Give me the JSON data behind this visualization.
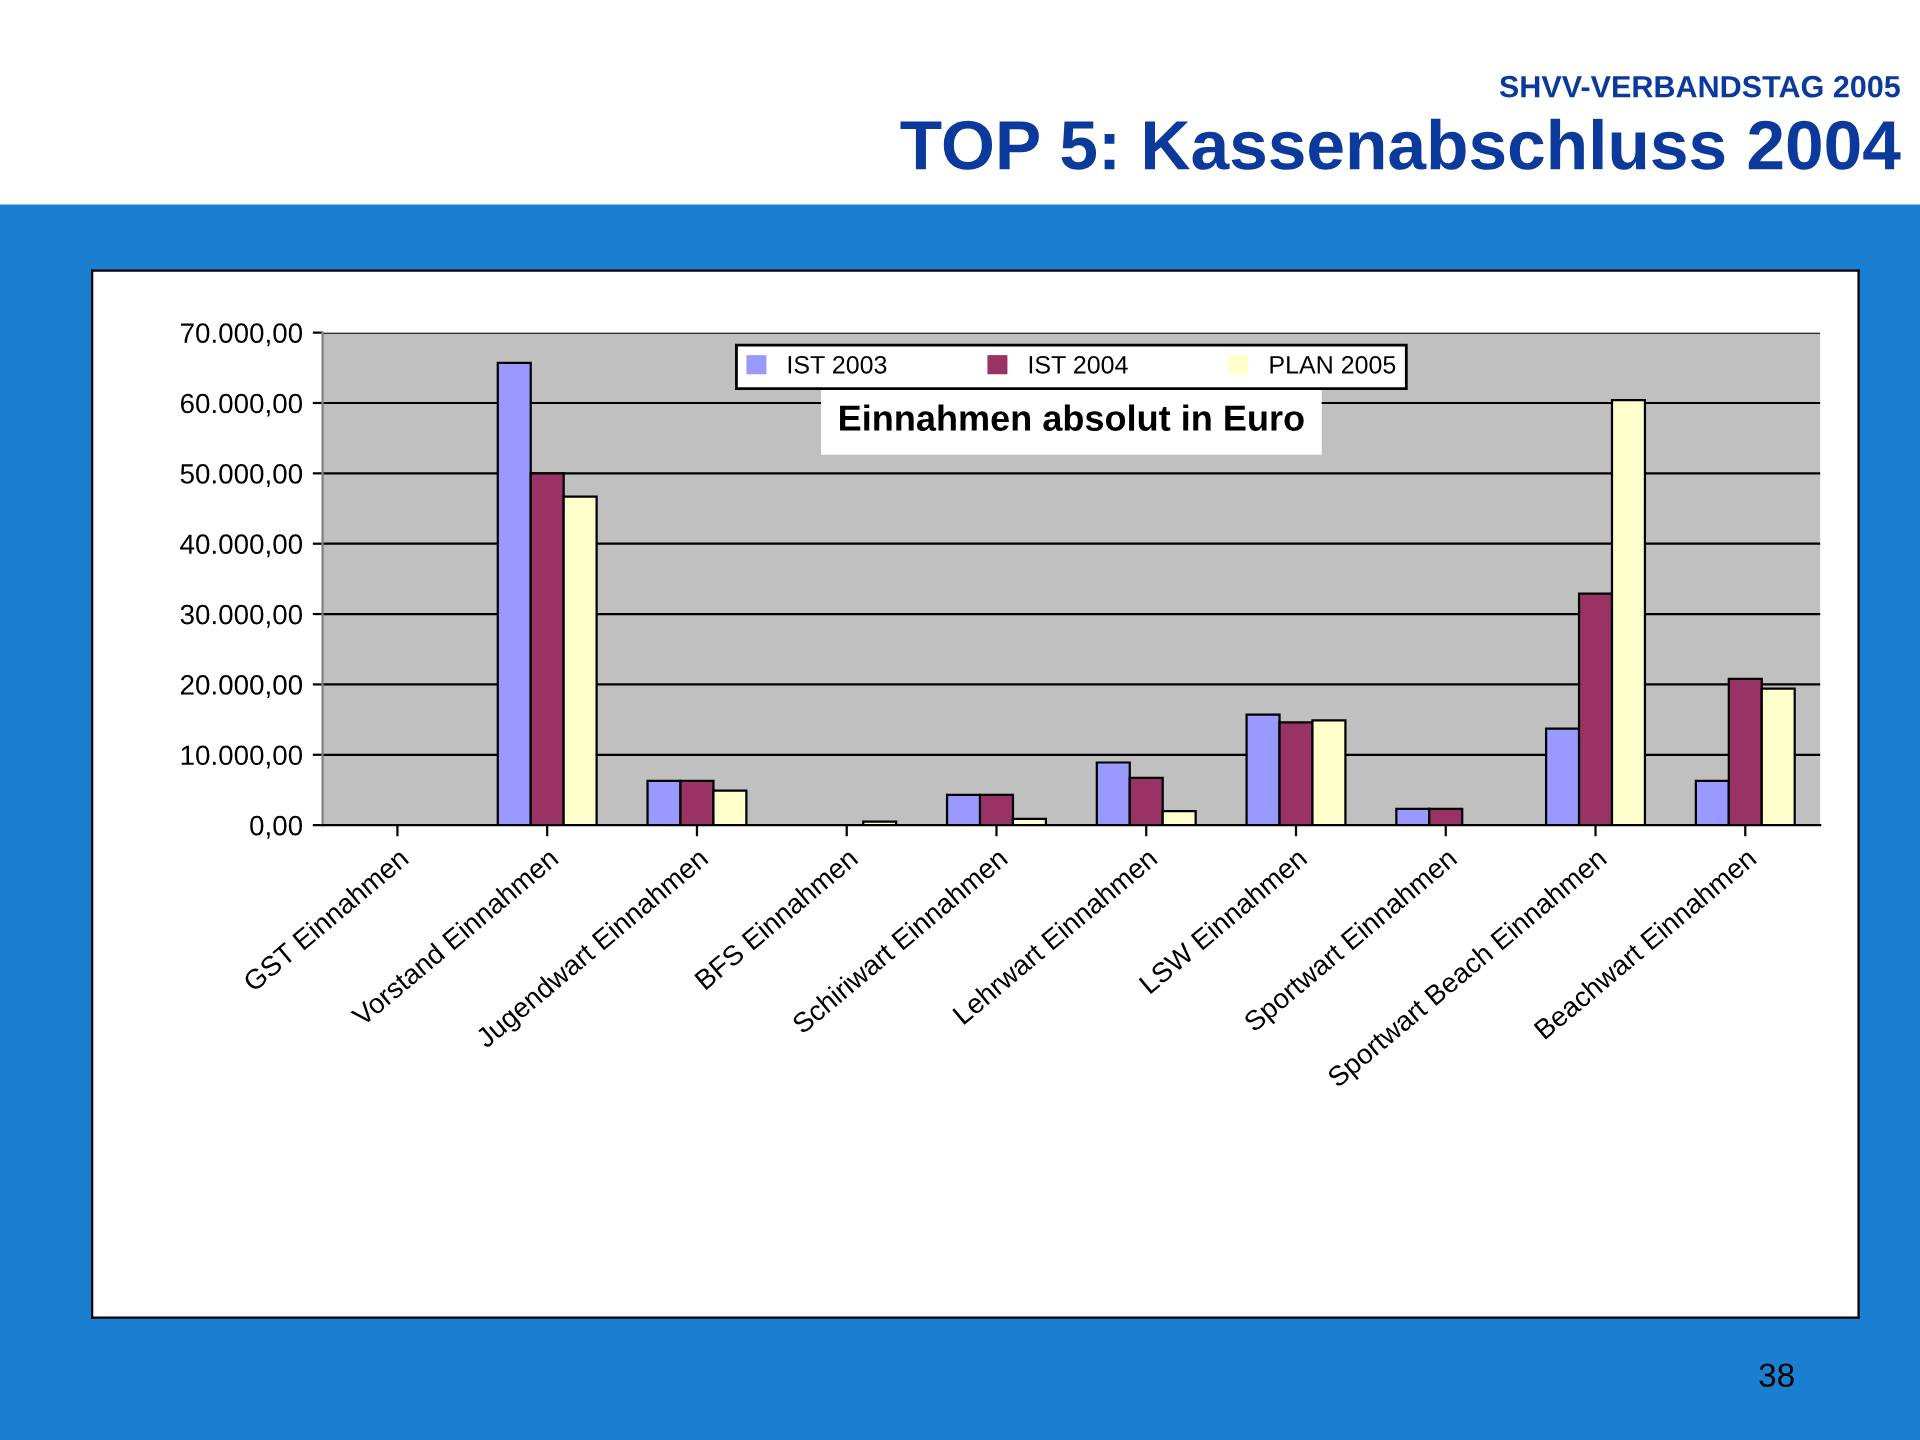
{
  "chart_data": {
    "type": "bar",
    "title": "TOP 5: Kassenabschluss 2004",
    "subtitle": "SHVV-VERBANDSTAG 2005",
    "annotations": [
      "Einnahmen absolut in Euro",
      "38"
    ],
    "categories": [
      "GST Einnahmen",
      "Vorstand Einnahmen",
      "Jugendwart Einnahmen",
      "BFS Einnahmen",
      "Schiriwart Einnahmen",
      "Lehrwart Einnahmen",
      "LSW Einnahmen",
      "Sportwart Einnahmen",
      "Sportwart Beach Einnahmen",
      "Beachwart Einnahmen"
    ],
    "series": [
      {
        "name": "IST 2003",
        "color": "#9999ff",
        "values": [
          0,
          65700,
          6300,
          0,
          4300,
          8900,
          15700,
          2300,
          13700,
          6300
        ]
      },
      {
        "name": "IST 2004",
        "color": "#993366",
        "values": [
          0,
          50000,
          6300,
          0,
          4300,
          6700,
          14600,
          2300,
          32900,
          20800
        ]
      },
      {
        "name": "PLAN 2005",
        "color": "#ffffcc",
        "values": [
          0,
          46700,
          4900,
          500,
          900,
          2000,
          14900,
          0,
          60400,
          19400
        ]
      }
    ],
    "ylim": [
      0,
      70000
    ],
    "yticks": [
      {
        "value": 0,
        "label": "0,00"
      },
      {
        "value": 10000,
        "label": "10.000,00"
      },
      {
        "value": 20000,
        "label": "20.000,00"
      },
      {
        "value": 30000,
        "label": "30.000,00"
      },
      {
        "value": 40000,
        "label": "40.000,00"
      },
      {
        "value": 50000,
        "label": "50.000,00"
      },
      {
        "value": 60000,
        "label": "60.000,00"
      },
      {
        "value": 70000,
        "label": "70.000,00"
      }
    ],
    "grid": "y",
    "legend": "top"
  }
}
